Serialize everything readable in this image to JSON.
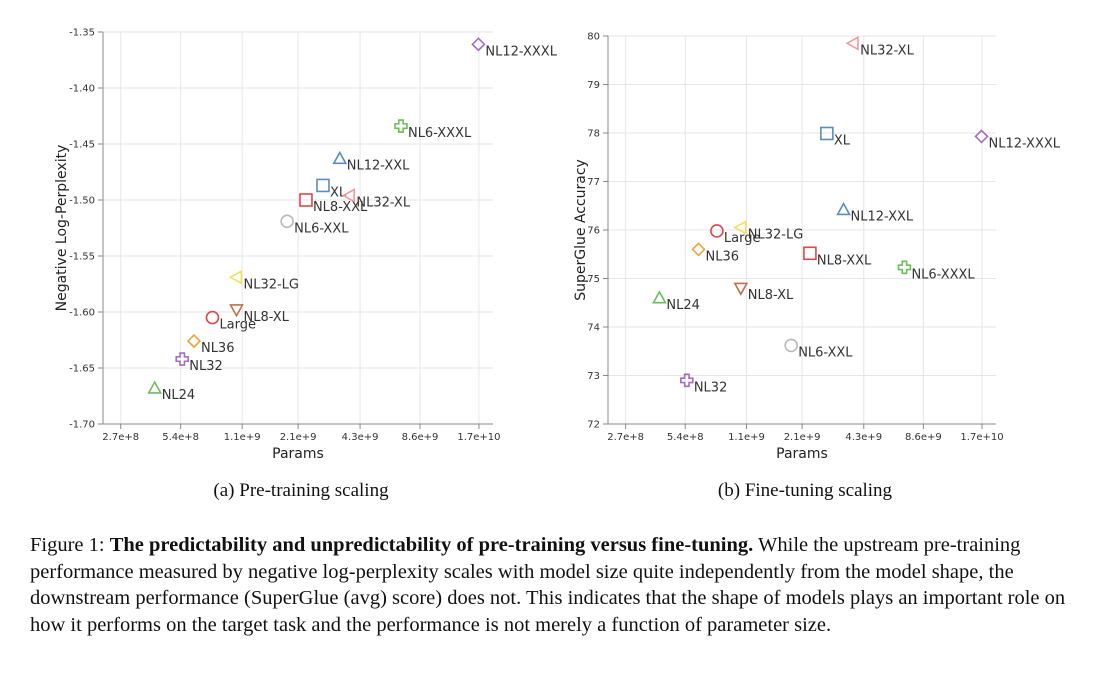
{
  "chart_data": [
    {
      "type": "scatter",
      "xlabel": "Params",
      "ylabel": "Negative Log-Perplexity",
      "xscale": "log",
      "xlim": [
        220000000,
        20000000000
      ],
      "ylim": [
        -1.7,
        -1.35
      ],
      "grid": true,
      "x_ticks": [
        {
          "value": 270000000,
          "label": "2.7e+8"
        },
        {
          "value": 540000000,
          "label": "5.4e+8"
        },
        {
          "value": 1100000000,
          "label": "1.1e+9"
        },
        {
          "value": 2100000000,
          "label": "2.1e+9"
        },
        {
          "value": 4300000000,
          "label": "4.3e+9"
        },
        {
          "value": 8600000000,
          "label": "8.6e+9"
        },
        {
          "value": 17000000000,
          "label": "1.7e+10"
        }
      ],
      "y_ticks": [
        {
          "value": -1.35,
          "label": "-1.35"
        },
        {
          "value": -1.4,
          "label": "-1.40"
        },
        {
          "value": -1.45,
          "label": "-1.45"
        },
        {
          "value": -1.5,
          "label": "-1.50"
        },
        {
          "value": -1.55,
          "label": "-1.55"
        },
        {
          "value": -1.6,
          "label": "-1.60"
        },
        {
          "value": -1.65,
          "label": "-1.65"
        },
        {
          "value": -1.7,
          "label": "-1.70"
        }
      ],
      "points": [
        {
          "label": "NL24",
          "x": 400000000,
          "y": -1.668,
          "shape": "triangle-up",
          "color": "#6cbe5a"
        },
        {
          "label": "NL32",
          "x": 550000000,
          "y": -1.642,
          "shape": "cross",
          "color": "#a46dc2"
        },
        {
          "label": "NL36",
          "x": 630000000,
          "y": -1.626,
          "shape": "diamond",
          "color": "#f0a33c"
        },
        {
          "label": "Large",
          "x": 780000000,
          "y": -1.605,
          "shape": "circle",
          "color": "#e0474c"
        },
        {
          "label": "NL8-XL",
          "x": 1030000000,
          "y": -1.598,
          "shape": "triangle-down",
          "color": "#b87248"
        },
        {
          "label": "NL32-LG",
          "x": 1030000000,
          "y": -1.569,
          "shape": "triangle-left",
          "color": "#f5e05a"
        },
        {
          "label": "NL6-XXL",
          "x": 1850000000,
          "y": -1.519,
          "shape": "circle",
          "color": "#b9b9b9"
        },
        {
          "label": "NL8-XXL",
          "x": 2300000000,
          "y": -1.5,
          "shape": "square",
          "color": "#e0474c"
        },
        {
          "label": "XL",
          "x": 2800000000,
          "y": -1.487,
          "shape": "square",
          "color": "#5b8cbd"
        },
        {
          "label": "NL32-XL",
          "x": 3800000000,
          "y": -1.496,
          "shape": "triangle-left",
          "color": "#f19a9c"
        },
        {
          "label": "NL12-XXL",
          "x": 3400000000,
          "y": -1.463,
          "shape": "triangle-up",
          "color": "#5b8cbd"
        },
        {
          "label": "NL6-XXXL",
          "x": 6900000000,
          "y": -1.434,
          "shape": "cross",
          "color": "#6cbe5a"
        },
        {
          "label": "NL12-XXXL",
          "x": 16900000000,
          "y": -1.361,
          "shape": "diamond",
          "color": "#a46dc2"
        }
      ]
    },
    {
      "type": "scatter",
      "xlabel": "Params",
      "ylabel": "SuperGlue Accuracy",
      "xscale": "log",
      "xlim": [
        220000000,
        20000000000
      ],
      "ylim": [
        72,
        80
      ],
      "grid": true,
      "x_ticks": [
        {
          "value": 270000000,
          "label": "2.7e+8"
        },
        {
          "value": 540000000,
          "label": "5.4e+8"
        },
        {
          "value": 1100000000,
          "label": "1.1e+9"
        },
        {
          "value": 2100000000,
          "label": "2.1e+9"
        },
        {
          "value": 4300000000,
          "label": "4.3e+9"
        },
        {
          "value": 8600000000,
          "label": "8.6e+9"
        },
        {
          "value": 17000000000,
          "label": "1.7e+10"
        }
      ],
      "y_ticks": [
        {
          "value": 72,
          "label": "72"
        },
        {
          "value": 73,
          "label": "73"
        },
        {
          "value": 74,
          "label": "74"
        },
        {
          "value": 75,
          "label": "75"
        },
        {
          "value": 76,
          "label": "76"
        },
        {
          "value": 77,
          "label": "77"
        },
        {
          "value": 78,
          "label": "78"
        },
        {
          "value": 79,
          "label": "79"
        },
        {
          "value": 80,
          "label": "80"
        }
      ],
      "points": [
        {
          "label": "NL24",
          "x": 400000000,
          "y": 74.6,
          "shape": "triangle-up",
          "color": "#6cbe5a"
        },
        {
          "label": "NL32",
          "x": 550000000,
          "y": 72.9,
          "shape": "cross",
          "color": "#a46dc2"
        },
        {
          "label": "NL36",
          "x": 630000000,
          "y": 75.6,
          "shape": "diamond",
          "color": "#f0a33c"
        },
        {
          "label": "Large",
          "x": 780000000,
          "y": 75.98,
          "shape": "circle",
          "color": "#e0474c"
        },
        {
          "label": "NL32-LG",
          "x": 1030000000,
          "y": 76.05,
          "shape": "triangle-left",
          "color": "#f5e05a"
        },
        {
          "label": "NL8-XL",
          "x": 1030000000,
          "y": 74.8,
          "shape": "triangle-down",
          "color": "#b87248"
        },
        {
          "label": "NL6-XXL",
          "x": 1850000000,
          "y": 73.62,
          "shape": "circle",
          "color": "#b9b9b9"
        },
        {
          "label": "NL8-XXL",
          "x": 2300000000,
          "y": 75.52,
          "shape": "square",
          "color": "#e0474c"
        },
        {
          "label": "XL",
          "x": 2800000000,
          "y": 77.99,
          "shape": "square",
          "color": "#5b8cbd"
        },
        {
          "label": "NL32-XL",
          "x": 3800000000,
          "y": 79.85,
          "shape": "triangle-left",
          "color": "#f19a9c"
        },
        {
          "label": "NL12-XXL",
          "x": 3400000000,
          "y": 76.42,
          "shape": "triangle-up",
          "color": "#5b8cbd"
        },
        {
          "label": "NL6-XXXL",
          "x": 6900000000,
          "y": 75.23,
          "shape": "cross",
          "color": "#6cbe5a"
        },
        {
          "label": "NL12-XXXL",
          "x": 16900000000,
          "y": 77.93,
          "shape": "diamond",
          "color": "#a46dc2"
        }
      ]
    }
  ],
  "subcaptions": [
    "(a) Pre-training scaling",
    "(b) Fine-tuning scaling"
  ],
  "caption": {
    "prefix": "Figure 1: ",
    "bold": "The predictability and unpredictability of pre-training versus fine-tuning.",
    "text": " While the upstream pre-training performance measured by negative log-perplexity scales with model size quite independently from the model shape, the downstream performance (SuperGlue (avg) score) does not. This indicates that the shape of models plays an important role on how it performs on the target task and the performance is not merely a function of parameter size."
  }
}
